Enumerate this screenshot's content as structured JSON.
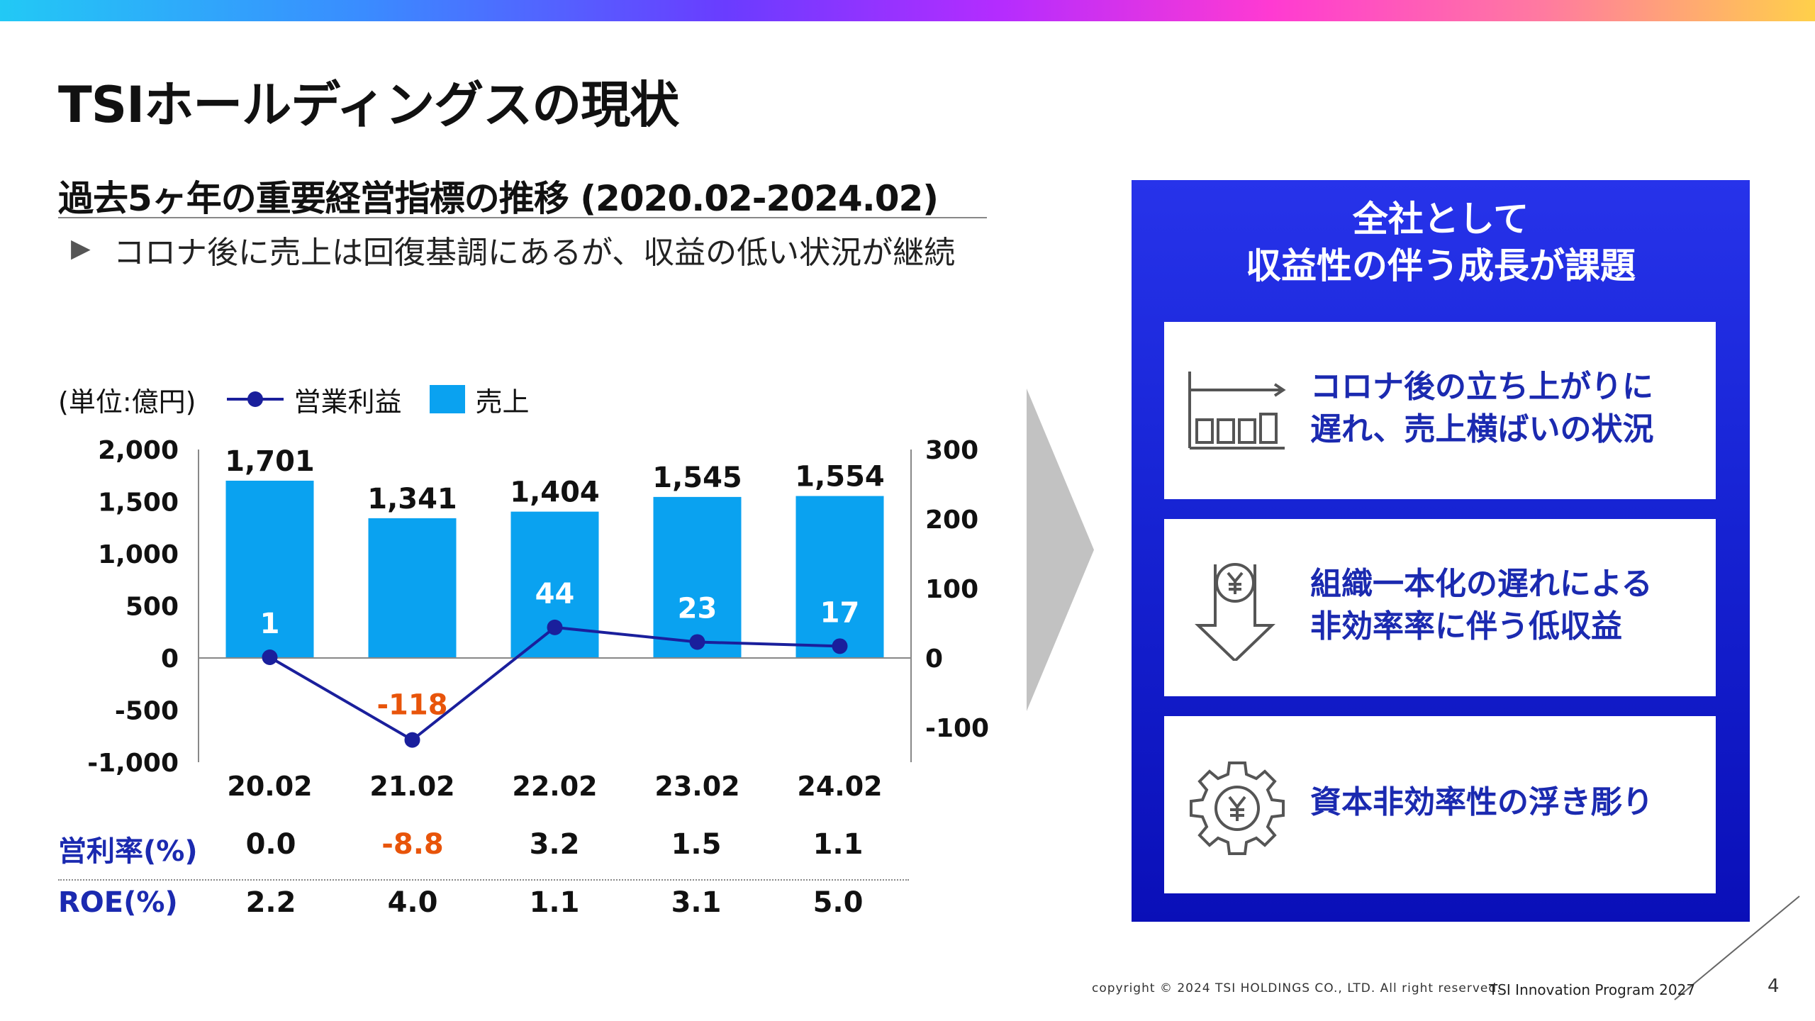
{
  "page": {
    "title": "TSIホールディングスの現状",
    "section_title": "過去5ヶ年の重要経営指標の推移 (2020.02-2024.02)",
    "bullet": "コロナ後に売上は回復基調にあるが、収益の低い状況が継続"
  },
  "legend": {
    "unit": "(単位:億円)",
    "line_label": "営業利益",
    "bar_label": "売上"
  },
  "chart_data": {
    "type": "bar",
    "categories": [
      "20.02",
      "21.02",
      "22.02",
      "23.02",
      "24.02"
    ],
    "series": [
      {
        "name": "売上",
        "type": "bar",
        "axis": "left",
        "values": [
          1701,
          1341,
          1404,
          1545,
          1554
        ],
        "labels": [
          "1,701",
          "1,341",
          "1,404",
          "1,545",
          "1,554"
        ],
        "color": "#0aa2f0"
      },
      {
        "name": "営業利益",
        "type": "line",
        "axis": "right",
        "values": [
          1,
          -118,
          44,
          23,
          17
        ],
        "labels": [
          "1",
          "-118",
          "44",
          "23",
          "17"
        ],
        "color": "#1a1f9c"
      }
    ],
    "left_axis": {
      "ylim": [
        -1000,
        2000
      ],
      "ticks": [
        2000,
        1500,
        1000,
        500,
        0,
        -500,
        -1000
      ],
      "tick_labels": [
        "2,000",
        "1,500",
        "1,000",
        "500",
        "0",
        "-500",
        "-1,000"
      ]
    },
    "right_axis": {
      "ylim": [
        -150,
        300
      ],
      "ticks": [
        300,
        200,
        100,
        0,
        -100
      ],
      "tick_labels": [
        "300",
        "200",
        "100",
        "0",
        "-100"
      ]
    },
    "negative_label_color": "#e8540a"
  },
  "table": {
    "rows": [
      {
        "label": "営利率(%)",
        "values": [
          "0.0",
          "-8.8",
          "3.2",
          "1.5",
          "1.1"
        ],
        "negative_index": 1
      },
      {
        "label": "ROE(%)",
        "values": [
          "2.2",
          "4.0",
          "1.1",
          "3.1",
          "5.0"
        ]
      }
    ]
  },
  "panel": {
    "title_line1": "全社として",
    "title_line2": "収益性の伴う成長が課題",
    "cards": [
      {
        "icon": "bar-chart-flat-icon",
        "line1": "コロナ後の立ち上がりに",
        "line2": "遅れ、売上横ばいの状況"
      },
      {
        "icon": "yen-down-arrow-icon",
        "line1": "組織一本化の遅れによる",
        "line2": "非効率率に伴う低収益"
      },
      {
        "icon": "yen-gear-icon",
        "line1": "資本非効率性の浮き彫り",
        "line2": ""
      }
    ]
  },
  "footer": {
    "copyright": "copyright © 2024 TSI HOLDINGS CO., LTD. All right reserved.",
    "program": "TSI Innovation Program 2027",
    "page_number": "4"
  },
  "colors": {
    "accent_blue": "#1b2ab0",
    "bar_blue": "#0aa2f0",
    "panel_blue": "#1825d6",
    "negative_orange": "#e8540a"
  }
}
